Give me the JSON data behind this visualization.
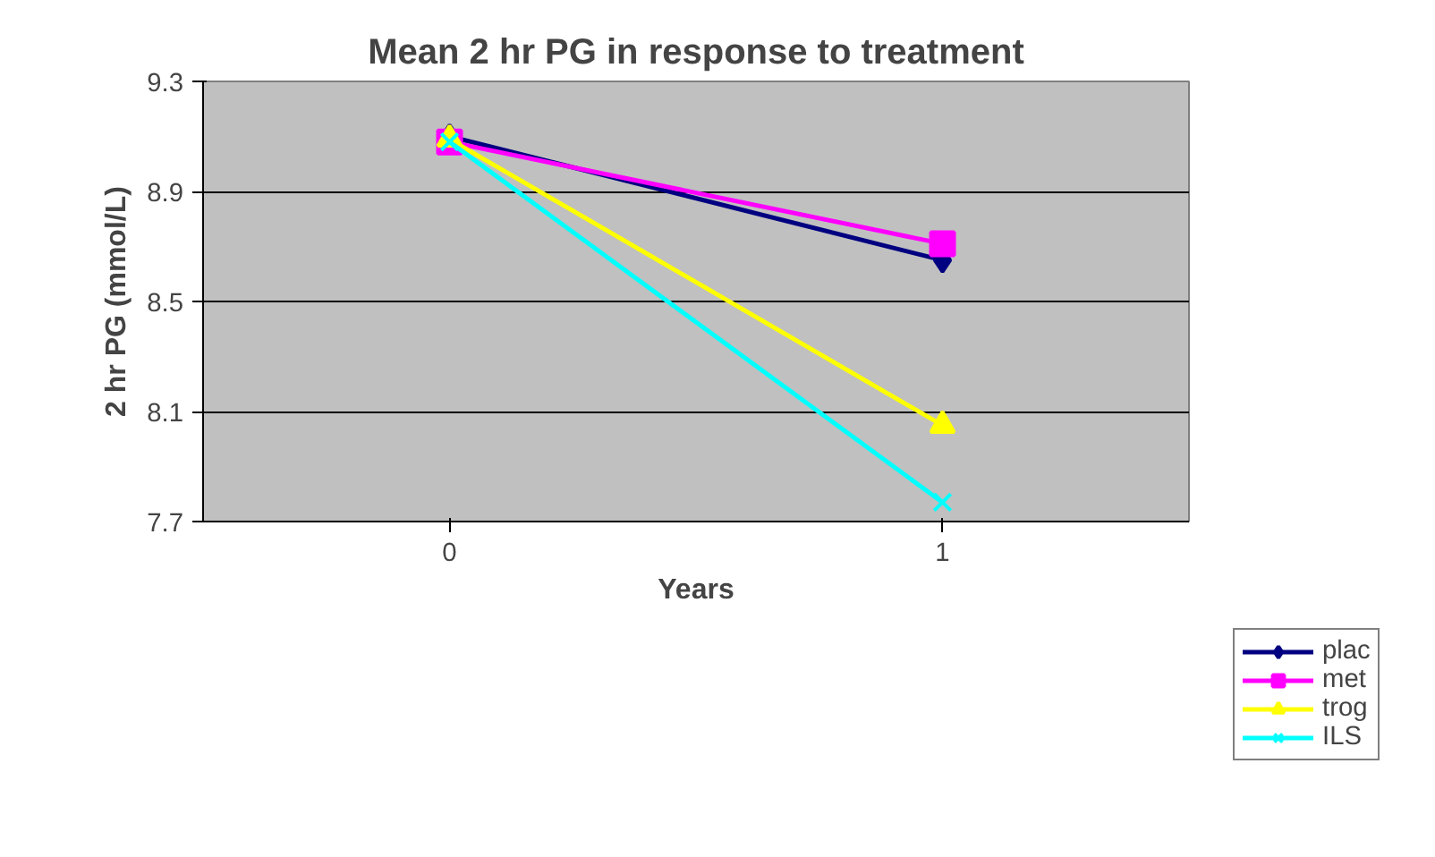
{
  "chart_data": {
    "type": "line",
    "title": "Mean 2 hr PG in response to treatment",
    "xlabel": "Years",
    "ylabel": "2 hr PG (mmol/L)",
    "categories": [
      "0",
      "1"
    ],
    "series": [
      {
        "name": "plac",
        "color": "#000080",
        "values": [
          9.1,
          8.65
        ],
        "marker": "diamond"
      },
      {
        "name": "met",
        "color": "#ff00ff",
        "values": [
          9.08,
          8.71
        ],
        "marker": "square"
      },
      {
        "name": "trog",
        "color": "#ffff00",
        "values": [
          9.09,
          8.05
        ],
        "marker": "triangle"
      },
      {
        "name": "ILS",
        "color": "#00ffff",
        "values": [
          9.08,
          7.77
        ],
        "marker": "x"
      }
    ],
    "ylim": [
      7.7,
      9.3
    ],
    "yticks": [
      7.7,
      8.1,
      8.5,
      8.9,
      9.3
    ],
    "grid": "y",
    "legend": "bottom right",
    "line_style": "solid"
  }
}
